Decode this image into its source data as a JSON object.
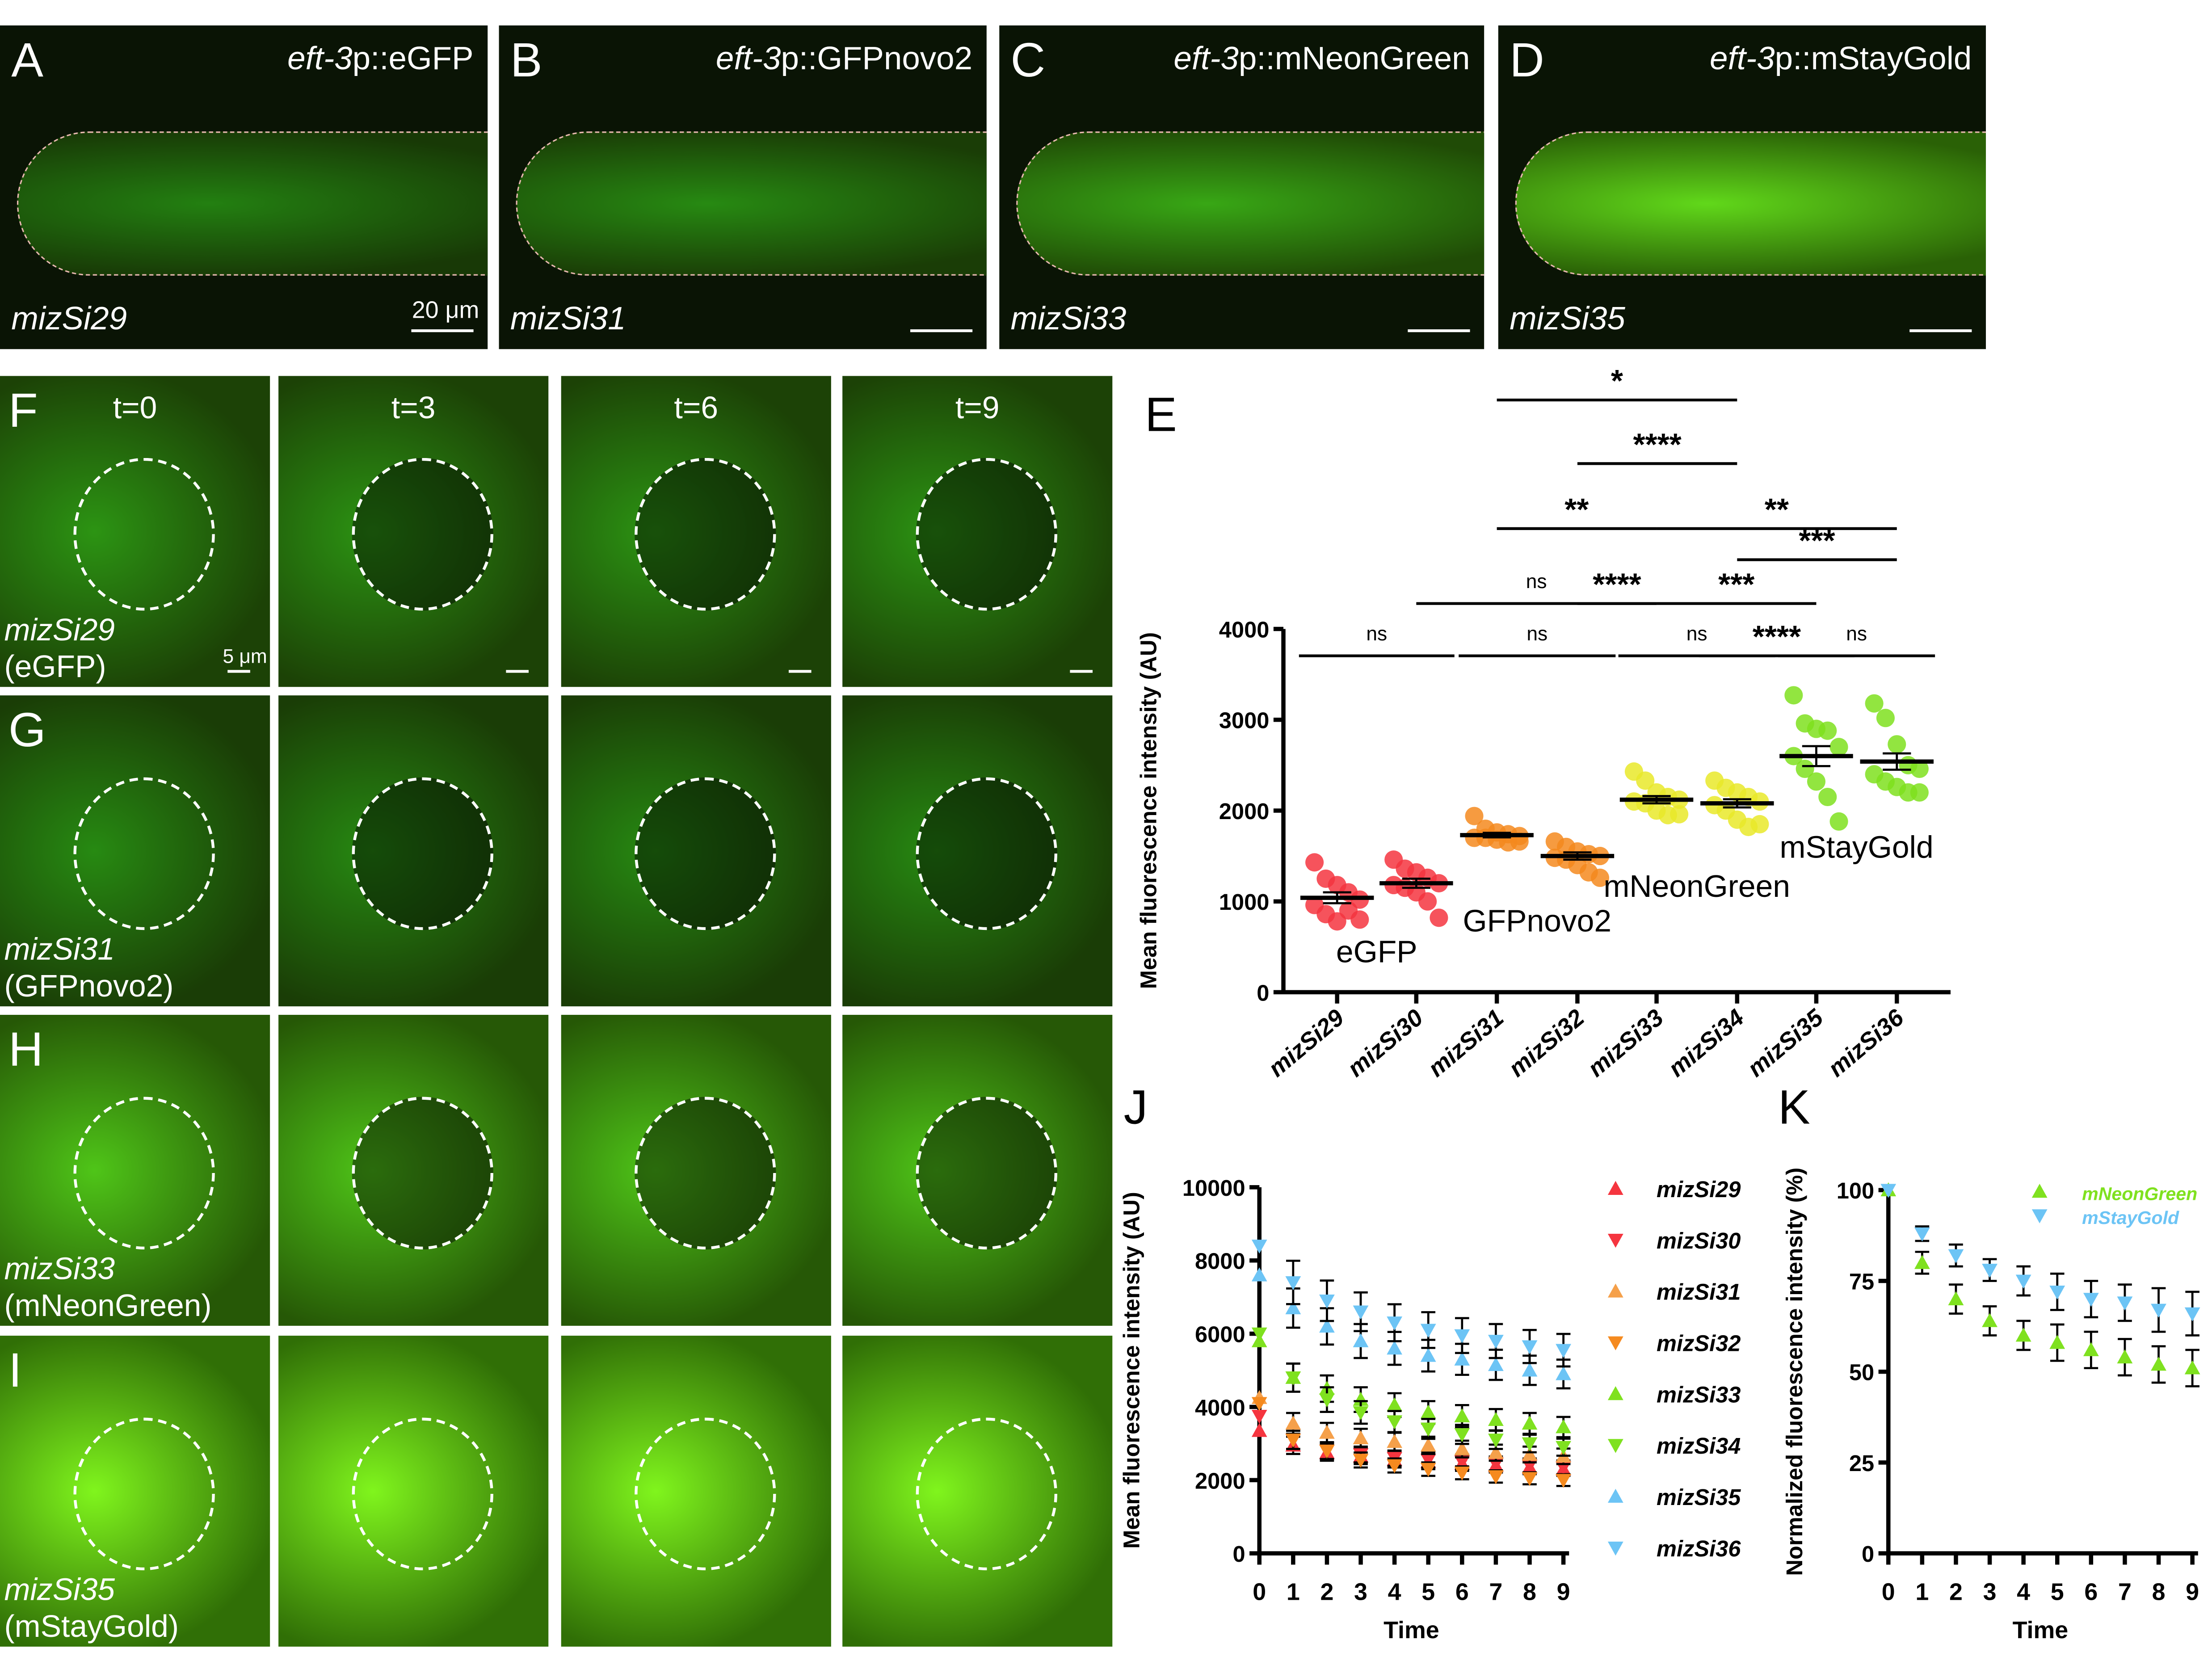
{
  "panels_top": [
    {
      "letter": "A",
      "gene": "eft-3",
      "construct": "p::eGFP",
      "strain": "mizSi29",
      "scale": "20 μm",
      "brightness": 0.35
    },
    {
      "letter": "B",
      "gene": "eft-3",
      "construct": "p::GFPnovo2",
      "strain": "mizSi31",
      "brightness": 0.4
    },
    {
      "letter": "C",
      "gene": "eft-3",
      "construct": "p::mNeonGreen",
      "strain": "mizSi33",
      "brightness": 0.55
    },
    {
      "letter": "D",
      "gene": "eft-3",
      "construct": "p::mStayGold",
      "strain": "mizSi35",
      "brightness": 0.8
    }
  ],
  "timelapse": {
    "times": [
      "t=0",
      "t=3",
      "t=6",
      "t=9"
    ],
    "scale": "5 μm",
    "rows": [
      {
        "letter": "F",
        "strain": "mizSi29",
        "protein": "(eGFP)",
        "brightness": 0.45
      },
      {
        "letter": "G",
        "strain": "mizSi31",
        "protein": "(GFPnovo2)",
        "brightness": 0.4
      },
      {
        "letter": "H",
        "strain": "mizSi33",
        "protein": "(mNeonGreen)",
        "brightness": 0.7
      },
      {
        "letter": "I",
        "strain": "mizSi35",
        "protein": "(mStayGold)",
        "brightness": 0.95
      }
    ]
  },
  "colors": {
    "red": "#f5353f",
    "orange": "#f58a1f",
    "yellow": "#e9e92a",
    "green": "#7fe11f",
    "blue": "#6cc4f5"
  },
  "chart_data": [
    {
      "panel": "E",
      "type": "scatter",
      "ylabel": "Mean fluorescence intensity (AU)",
      "ylim": [
        0,
        4000
      ],
      "yticks": [
        0,
        1000,
        2000,
        3000,
        4000
      ],
      "categories": [
        "mizSi29",
        "mizSi30",
        "mizSi31",
        "mizSi32",
        "mizSi33",
        "mizSi34",
        "mizSi35",
        "mizSi36"
      ],
      "colors": [
        "#f5353f",
        "#f5353f",
        "#f58a1f",
        "#f58a1f",
        "#e9e92a",
        "#e9e92a",
        "#7fe11f",
        "#7fe11f"
      ],
      "means": [
        1040,
        1200,
        1730,
        1500,
        2120,
        2080,
        2600,
        2540
      ],
      "sem": [
        60,
        50,
        25,
        40,
        40,
        45,
        110,
        90
      ],
      "points": [
        [
          1430,
          1250,
          1180,
          1100,
          1020,
          960,
          860,
          780,
          900,
          800
        ],
        [
          1460,
          1360,
          1320,
          1260,
          1200,
          1180,
          1150,
          1100,
          1000,
          820
        ],
        [
          1940,
          1800,
          1760,
          1740,
          1720,
          1700,
          1700,
          1680,
          1650,
          1660
        ],
        [
          1660,
          1600,
          1550,
          1520,
          1500,
          1480,
          1460,
          1400,
          1320,
          1260
        ],
        [
          2430,
          2330,
          2200,
          2150,
          2120,
          2100,
          2080,
          2000,
          1950,
          1960
        ],
        [
          2330,
          2250,
          2200,
          2150,
          2100,
          2060,
          2000,
          1900,
          1820,
          1850
        ],
        [
          3270,
          2960,
          2900,
          2880,
          2700,
          2600,
          2460,
          2320,
          2150,
          1880
        ],
        [
          3180,
          3020,
          2730,
          2500,
          2460,
          2400,
          2320,
          2260,
          2200,
          2200
        ]
      ],
      "group_labels": [
        {
          "text": "eGFP",
          "cat": 0.5,
          "y": 330
        },
        {
          "text": "GFPnovo2",
          "cat": 2.5,
          "y": 670
        },
        {
          "text": "mNeonGreen",
          "cat": 4.5,
          "y": 1050
        },
        {
          "text": "mStayGold",
          "cat": 6.5,
          "y": 1480
        }
      ],
      "significance": [
        {
          "from": 0,
          "to": 1,
          "label": "ns",
          "level": 0
        },
        {
          "from": 2,
          "to": 3,
          "label": "ns",
          "level": 0
        },
        {
          "from": 4,
          "to": 5,
          "label": "ns",
          "level": 0
        },
        {
          "from": 5,
          "to": 6,
          "label": "****",
          "level": 0
        },
        {
          "from": 6,
          "to": 7,
          "label": "ns",
          "level": 0
        },
        {
          "from": 1,
          "to": 4,
          "label": "ns",
          "level": 1
        },
        {
          "from": 3,
          "to": 4,
          "label": "****",
          "level": 1
        },
        {
          "from": 4,
          "to": 6,
          "label": "***",
          "level": 1
        },
        {
          "from": 5,
          "to": 7,
          "label": "***",
          "level": 2
        },
        {
          "from": 2,
          "to": 4,
          "label": "**",
          "level": 3
        },
        {
          "from": 4,
          "to": 7,
          "label": "**",
          "level": 3
        },
        {
          "from": 3,
          "to": 5,
          "label": "****",
          "level": 4
        },
        {
          "from": 2,
          "to": 5,
          "label": "*",
          "level": 5
        }
      ]
    },
    {
      "panel": "J",
      "type": "line",
      "xlabel": "Time",
      "ylabel": "Mean fluorescence intensity (AU)",
      "ylim": [
        0,
        10000
      ],
      "yticks": [
        0,
        2000,
        4000,
        6000,
        8000,
        10000
      ],
      "x": [
        0,
        1,
        2,
        3,
        4,
        5,
        6,
        7,
        8,
        9
      ],
      "series": [
        {
          "name": "mizSi29",
          "marker": "up",
          "color": "#f5353f",
          "values": [
            3350,
            2950,
            2750,
            2650,
            2550,
            2500,
            2450,
            2400,
            2350,
            2300
          ]
        },
        {
          "name": "mizSi30",
          "marker": "down",
          "color": "#f5353f",
          "values": [
            3750,
            3100,
            2800,
            2700,
            2600,
            2550,
            2500,
            2450,
            2400,
            2350
          ]
        },
        {
          "name": "mizSi31",
          "marker": "up",
          "color": "#f5a04a",
          "values": [
            4250,
            3550,
            3300,
            3150,
            3050,
            2950,
            2850,
            2750,
            2700,
            2650
          ]
        },
        {
          "name": "mizSi32",
          "marker": "down",
          "color": "#f58a1f",
          "values": [
            4100,
            3100,
            2800,
            2550,
            2400,
            2300,
            2200,
            2100,
            2050,
            2000
          ]
        },
        {
          "name": "mizSi33",
          "marker": "up",
          "color": "#7fe11f",
          "values": [
            5800,
            4800,
            4500,
            4200,
            4050,
            3850,
            3750,
            3650,
            3550,
            3450
          ]
        },
        {
          "name": "mizSi34",
          "marker": "down",
          "color": "#7fe11f",
          "values": [
            6000,
            4800,
            4200,
            3850,
            3600,
            3400,
            3250,
            3100,
            3000,
            2900
          ]
        },
        {
          "name": "mizSi35",
          "marker": "up",
          "color": "#6cc4f5",
          "values": [
            7600,
            6700,
            6200,
            5800,
            5600,
            5400,
            5300,
            5150,
            5000,
            4900
          ]
        },
        {
          "name": "mizSi36",
          "marker": "down",
          "color": "#6cc4f5",
          "values": [
            8400,
            7400,
            6900,
            6600,
            6300,
            6100,
            5950,
            5800,
            5650,
            5550
          ]
        }
      ]
    },
    {
      "panel": "K",
      "type": "line",
      "xlabel": "Time",
      "ylabel": "Normalized fluorescence intensity (%)",
      "ylim": [
        0,
        100
      ],
      "yticks": [
        0,
        25,
        50,
        75,
        100
      ],
      "x": [
        0,
        1,
        2,
        3,
        4,
        5,
        6,
        7,
        8,
        9
      ],
      "series": [
        {
          "name": "mNeonGreen",
          "marker": "up",
          "color": "#7fe11f",
          "values": [
            100,
            80,
            70,
            64,
            60,
            58,
            56,
            54,
            52,
            51
          ],
          "err": [
            0,
            3,
            4,
            4,
            4,
            5,
            5,
            5,
            5,
            5
          ]
        },
        {
          "name": "mStayGold",
          "marker": "down",
          "color": "#6cc4f5",
          "values": [
            100,
            88,
            82,
            78,
            75,
            72,
            70,
            69,
            67,
            66
          ],
          "err": [
            0,
            2,
            3,
            3,
            4,
            5,
            5,
            5,
            6,
            6
          ]
        }
      ]
    }
  ]
}
